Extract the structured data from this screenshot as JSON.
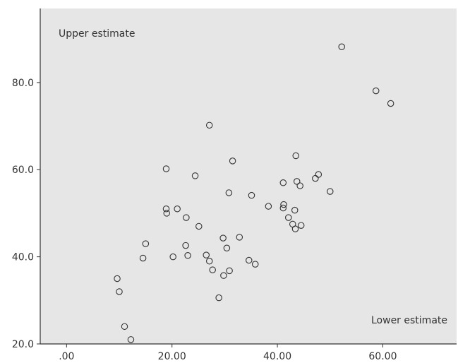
{
  "chart_data": {
    "type": "scatter",
    "title": "",
    "xlabel": "",
    "ylabel": "",
    "xlim": [
      -5,
      74
    ],
    "ylim": [
      20,
      97
    ],
    "x_ticks": [
      {
        "value": 0,
        "label": ".00"
      },
      {
        "value": 20,
        "label": "20.00"
      },
      {
        "value": 40,
        "label": "40.00"
      },
      {
        "value": 60,
        "label": "60.00"
      }
    ],
    "y_ticks": [
      {
        "value": 20,
        "label": "20.0"
      },
      {
        "value": 40,
        "label": "40.0"
      },
      {
        "value": 60,
        "label": "60.0"
      },
      {
        "value": 80,
        "label": "80.0"
      }
    ],
    "annotations": {
      "upper": "Upper estimate",
      "lower": "Lower estimate"
    },
    "grid": false,
    "legend": "none",
    "colors": {
      "plot_background": "#e6e6e6",
      "marker_stroke": "#333333",
      "axis": "#333333"
    },
    "series": [
      {
        "marker": "open-circle",
        "points": [
          [
            9.6,
            35.0
          ],
          [
            10.0,
            32.0
          ],
          [
            11.0,
            24.0
          ],
          [
            12.2,
            21.0
          ],
          [
            14.5,
            39.7
          ],
          [
            15.0,
            43.0
          ],
          [
            18.9,
            60.2
          ],
          [
            18.9,
            51.0
          ],
          [
            19.0,
            50.0
          ],
          [
            20.2,
            40.0
          ],
          [
            21.0,
            51.0
          ],
          [
            22.6,
            42.6
          ],
          [
            22.7,
            49.0
          ],
          [
            23.0,
            40.3
          ],
          [
            24.4,
            58.6
          ],
          [
            25.1,
            47.0
          ],
          [
            26.5,
            40.4
          ],
          [
            27.1,
            70.2
          ],
          [
            27.1,
            39.0
          ],
          [
            27.7,
            37.0
          ],
          [
            28.9,
            30.6
          ],
          [
            29.7,
            44.3
          ],
          [
            29.8,
            35.7
          ],
          [
            30.4,
            42.0
          ],
          [
            30.8,
            54.7
          ],
          [
            30.9,
            36.8
          ],
          [
            31.5,
            62.0
          ],
          [
            32.8,
            44.5
          ],
          [
            34.6,
            39.2
          ],
          [
            35.1,
            54.1
          ],
          [
            35.8,
            38.3
          ],
          [
            38.3,
            51.6
          ],
          [
            41.1,
            57.0
          ],
          [
            41.1,
            51.2
          ],
          [
            41.2,
            52.0
          ],
          [
            42.1,
            49.0
          ],
          [
            42.9,
            47.5
          ],
          [
            43.3,
            50.7
          ],
          [
            43.4,
            46.4
          ],
          [
            43.5,
            63.2
          ],
          [
            43.7,
            57.3
          ],
          [
            44.3,
            56.3
          ],
          [
            44.5,
            47.2
          ],
          [
            47.2,
            58.0
          ],
          [
            47.8,
            58.9
          ],
          [
            50.0,
            55.0
          ],
          [
            52.2,
            88.2
          ],
          [
            58.7,
            78.1
          ],
          [
            61.5,
            75.2
          ]
        ]
      }
    ]
  }
}
